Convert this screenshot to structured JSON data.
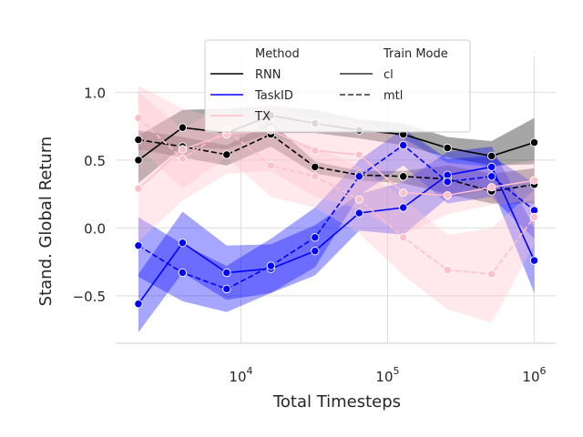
{
  "chart_data": {
    "type": "line",
    "xlabel": "Total Timesteps",
    "ylabel": "Stand. Global Return",
    "x_scale": "log",
    "xlim": [
      1400,
      1400000
    ],
    "ylim": [
      -0.85,
      1.13
    ],
    "grid": true,
    "x_ticks": [
      {
        "value": 10000,
        "base": "10",
        "exp": "4"
      },
      {
        "value": 100000,
        "base": "10",
        "exp": "5"
      },
      {
        "value": 1000000,
        "base": "10",
        "exp": "6"
      }
    ],
    "y_ticks": [
      {
        "value": 1.0,
        "label": "1.0"
      },
      {
        "value": 0.5,
        "label": "0.5"
      },
      {
        "value": 0.0,
        "label": "0.0"
      },
      {
        "value": -0.5,
        "label": "−0.5"
      }
    ],
    "legend": {
      "placement": "upper-center",
      "method_title": "Method",
      "mode_title": "Train Mode",
      "methods": [
        {
          "label": "RNN",
          "color": "#000000"
        },
        {
          "label": "TaskID",
          "color": "#0000ff"
        },
        {
          "label": "TX",
          "color": "#ffc0cb"
        }
      ],
      "modes": [
        {
          "label": "cl",
          "dash": "solid"
        },
        {
          "label": "mtl",
          "dash": "dashed"
        }
      ]
    },
    "x": [
      2000,
      4000,
      8000,
      16000,
      32000,
      64000,
      128000,
      256000,
      512000,
      1000000
    ],
    "series": [
      {
        "method": "RNN",
        "mode": "cl",
        "color": "#000000",
        "values": [
          0.5,
          0.74,
          0.7,
          0.83,
          0.77,
          0.72,
          0.69,
          0.59,
          0.53,
          0.63
        ],
        "lower": [
          0.33,
          0.6,
          0.58,
          0.7,
          0.7,
          0.66,
          0.61,
          0.52,
          0.46,
          0.47
        ],
        "upper": [
          0.68,
          0.87,
          0.88,
          0.9,
          0.87,
          0.8,
          0.77,
          0.67,
          0.64,
          0.81
        ]
      },
      {
        "method": "RNN",
        "mode": "mtl",
        "color": "#000000",
        "values": [
          0.65,
          0.6,
          0.54,
          0.69,
          0.45,
          0.39,
          0.38,
          0.36,
          0.27,
          0.32
        ],
        "lower": [
          0.58,
          0.52,
          0.46,
          0.6,
          0.4,
          0.35,
          0.33,
          0.25,
          0.18,
          0.18
        ],
        "upper": [
          0.72,
          0.67,
          0.61,
          0.78,
          0.49,
          0.42,
          0.42,
          0.46,
          0.4,
          0.44
        ]
      },
      {
        "method": "TaskID",
        "mode": "cl",
        "color": "#0000ff",
        "values": [
          -0.56,
          -0.11,
          -0.33,
          -0.3,
          -0.17,
          0.11,
          0.15,
          0.39,
          0.45,
          -0.24
        ],
        "lower": [
          -0.77,
          -0.33,
          -0.53,
          -0.48,
          -0.35,
          -0.02,
          -0.05,
          0.22,
          0.3,
          -0.48
        ],
        "upper": [
          -0.34,
          0.12,
          -0.13,
          -0.12,
          0.02,
          0.25,
          0.34,
          0.56,
          0.6,
          0.0
        ]
      },
      {
        "method": "TaskID",
        "mode": "mtl",
        "color": "#0000ff",
        "values": [
          -0.13,
          -0.33,
          -0.45,
          -0.28,
          -0.07,
          0.38,
          0.61,
          0.34,
          0.38,
          0.13
        ],
        "lower": [
          -0.36,
          -0.54,
          -0.62,
          -0.48,
          -0.29,
          0.24,
          0.46,
          0.18,
          0.23,
          -0.08
        ],
        "upper": [
          0.08,
          -0.12,
          -0.28,
          -0.08,
          0.15,
          0.5,
          0.73,
          0.51,
          0.53,
          0.33
        ]
      },
      {
        "method": "TX",
        "mode": "cl",
        "color": "#ffc0cb",
        "values": [
          0.29,
          0.58,
          0.69,
          0.72,
          0.57,
          0.54,
          0.26,
          0.24,
          0.3,
          0.35
        ],
        "lower": [
          -0.1,
          0.2,
          0.4,
          0.42,
          0.23,
          0.14,
          -0.05,
          0.1,
          0.17,
          0.2
        ],
        "upper": [
          1.05,
          0.88,
          0.8,
          0.93,
          0.81,
          0.8,
          0.66,
          0.48,
          0.45,
          0.5
        ]
      },
      {
        "method": "TX",
        "mode": "mtl",
        "color": "#ffc0cb",
        "values": [
          0.81,
          0.51,
          0.72,
          0.46,
          0.38,
          0.21,
          -0.07,
          -0.31,
          -0.34,
          0.08
        ],
        "lower": [
          0.6,
          0.29,
          0.52,
          0.23,
          0.15,
          -0.04,
          -0.35,
          -0.6,
          -0.7,
          -0.12
        ],
        "upper": [
          1.0,
          0.73,
          0.92,
          0.67,
          0.6,
          0.45,
          0.22,
          -0.05,
          0.0,
          0.28
        ]
      }
    ]
  }
}
